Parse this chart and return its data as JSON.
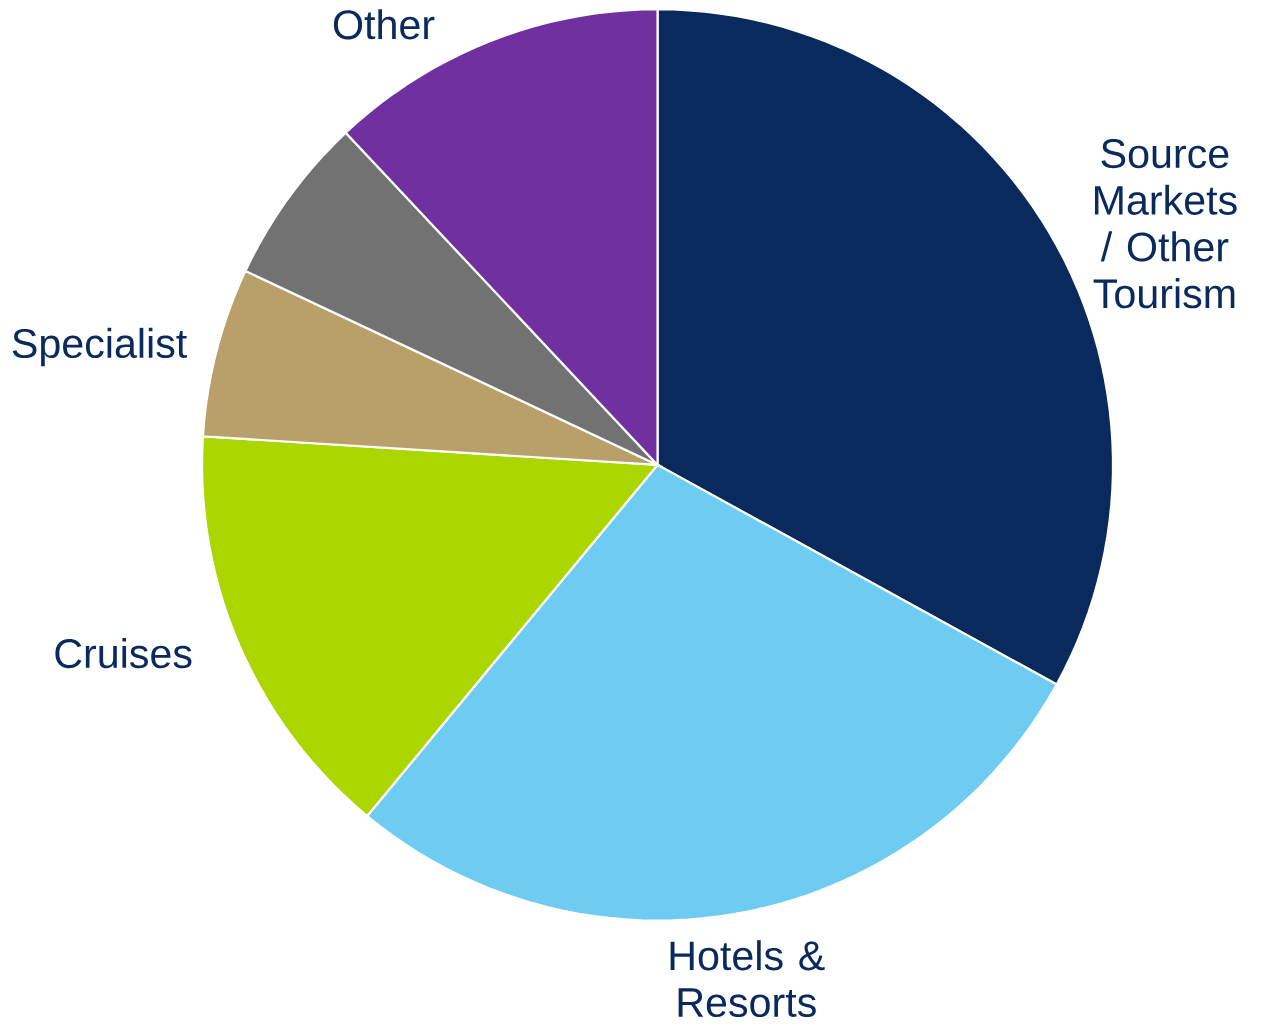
{
  "chart_data": {
    "type": "pie",
    "categories": [
      "Source Markets / Other Tourism",
      "Hotels & Resorts",
      "Cruises",
      "Specialist",
      null,
      "Other"
    ],
    "values": [
      33,
      28,
      15,
      6,
      6,
      12
    ],
    "colors": [
      "#0a2a5e",
      "#6ecbf2",
      "#acd600",
      "#b9a06a",
      "#727272",
      "#7030a0"
    ]
  }
}
